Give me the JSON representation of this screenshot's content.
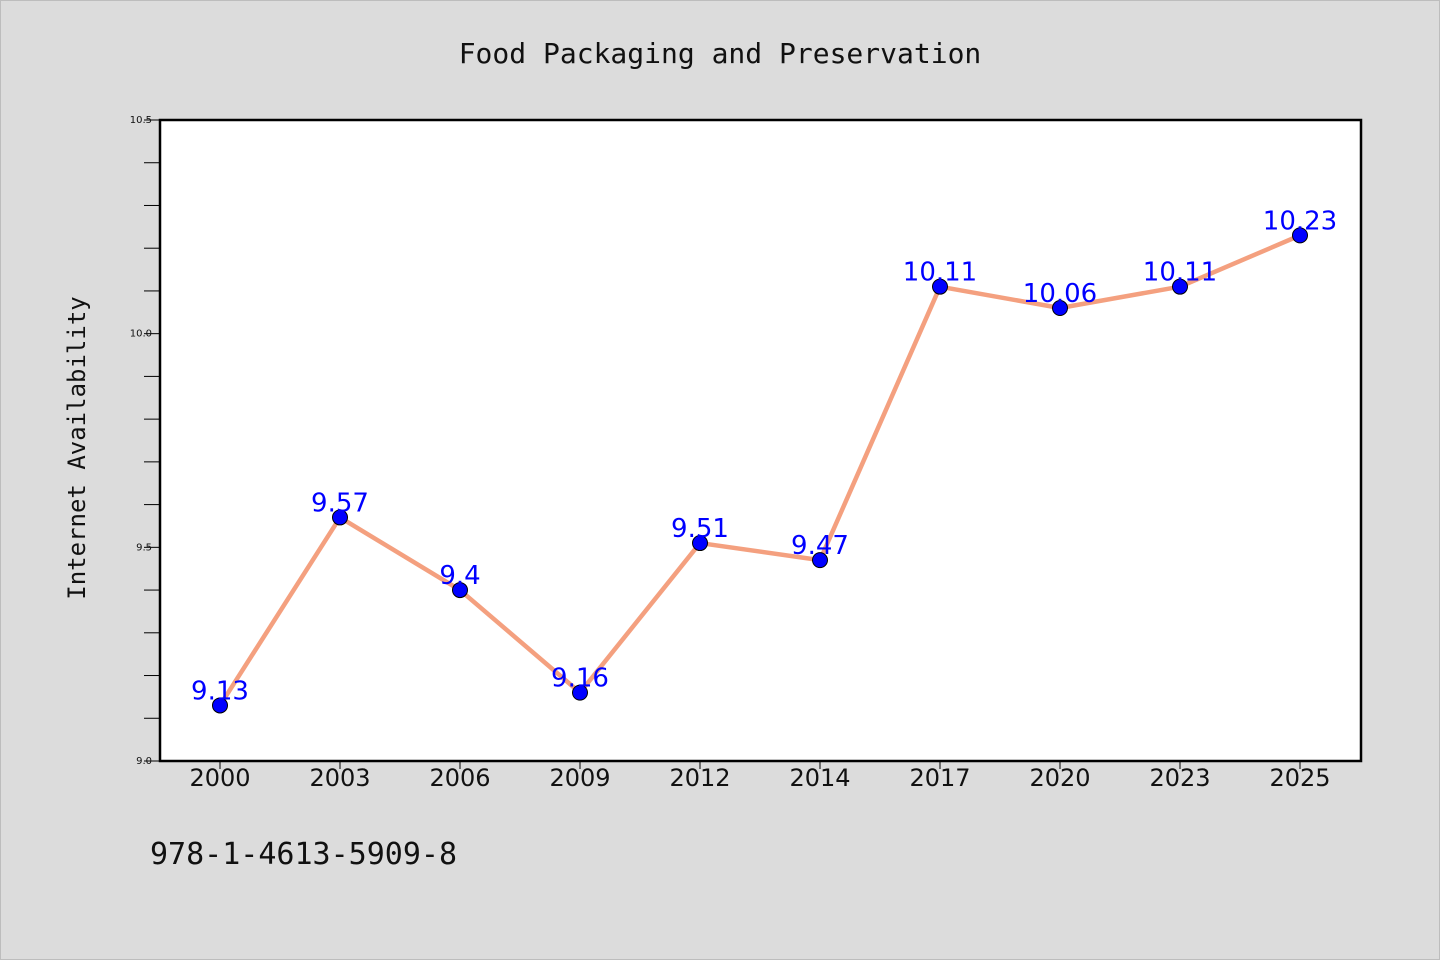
{
  "chart_data": {
    "type": "line",
    "title": "Food Packaging and Preservation",
    "xlabel": "",
    "ylabel": "Internet Availability",
    "categories": [
      "2000",
      "2003",
      "2006",
      "2009",
      "2012",
      "2014",
      "2017",
      "2020",
      "2023",
      "2025"
    ],
    "values": [
      9.13,
      9.57,
      9.4,
      9.16,
      9.51,
      9.47,
      10.11,
      10.06,
      10.11,
      10.23
    ],
    "data_labels": [
      "9.13",
      "9.57",
      "9.4",
      "9.16",
      "9.51",
      "9.47",
      "10.11",
      "10.06",
      "10.11",
      "10.23"
    ],
    "ylim": [
      9.0,
      10.5
    ],
    "yticks": [
      "9.0",
      "9.5",
      "10.0",
      "10.5"
    ],
    "ytick_values": [
      9.0,
      9.5,
      10.0,
      10.5
    ],
    "grid": false,
    "legend": "none",
    "line_color": "#f4a07f",
    "marker_color": "#0000ff",
    "label_color": "#0000ff"
  },
  "footer": {
    "isbn": "978-1-4613-5909-8"
  }
}
